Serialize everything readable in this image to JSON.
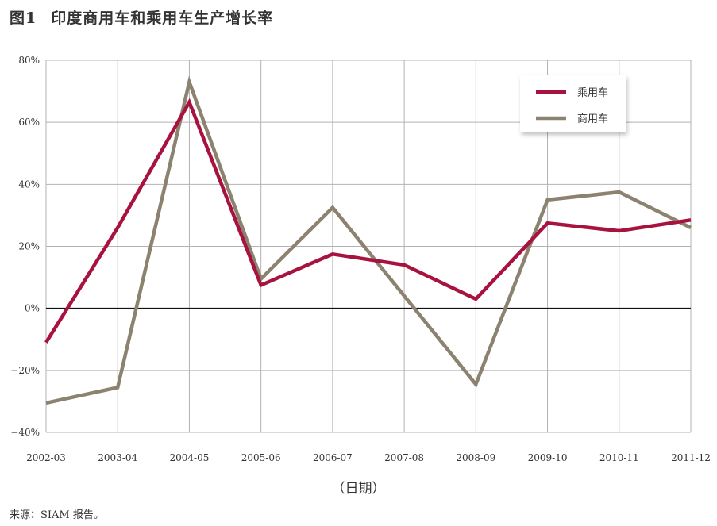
{
  "figure": {
    "number": "图1",
    "title": "印度商用车和乘用车生产增长率",
    "source": "来源：SIAM 报告。"
  },
  "chart_data": {
    "type": "line",
    "title": "印度商用车和乘用车生产增长率",
    "xlabel": "（日期）",
    "ylabel": "",
    "categories": [
      "2002-03",
      "2003-04",
      "2004-05",
      "2005-06",
      "2006-07",
      "2007-08",
      "2008-09",
      "2009-10",
      "2010-11",
      "2011-12"
    ],
    "y_ticks": [
      "80%",
      "60%",
      "40%",
      "20%",
      "0%",
      "−20%",
      "−40%"
    ],
    "ylim": [
      -40,
      80
    ],
    "grid": true,
    "legend_position": "top-right",
    "series": [
      {
        "name": "乘用车",
        "color": "#a8123e",
        "values": [
          -11,
          26,
          66.5,
          7.5,
          17.5,
          14,
          3,
          27.5,
          25,
          28.5
        ]
      },
      {
        "name": "商用车",
        "color": "#8c8270",
        "values": [
          -30.5,
          -25.5,
          73,
          9.5,
          32.5,
          4,
          -24.5,
          35,
          37.5,
          26
        ]
      }
    ]
  }
}
